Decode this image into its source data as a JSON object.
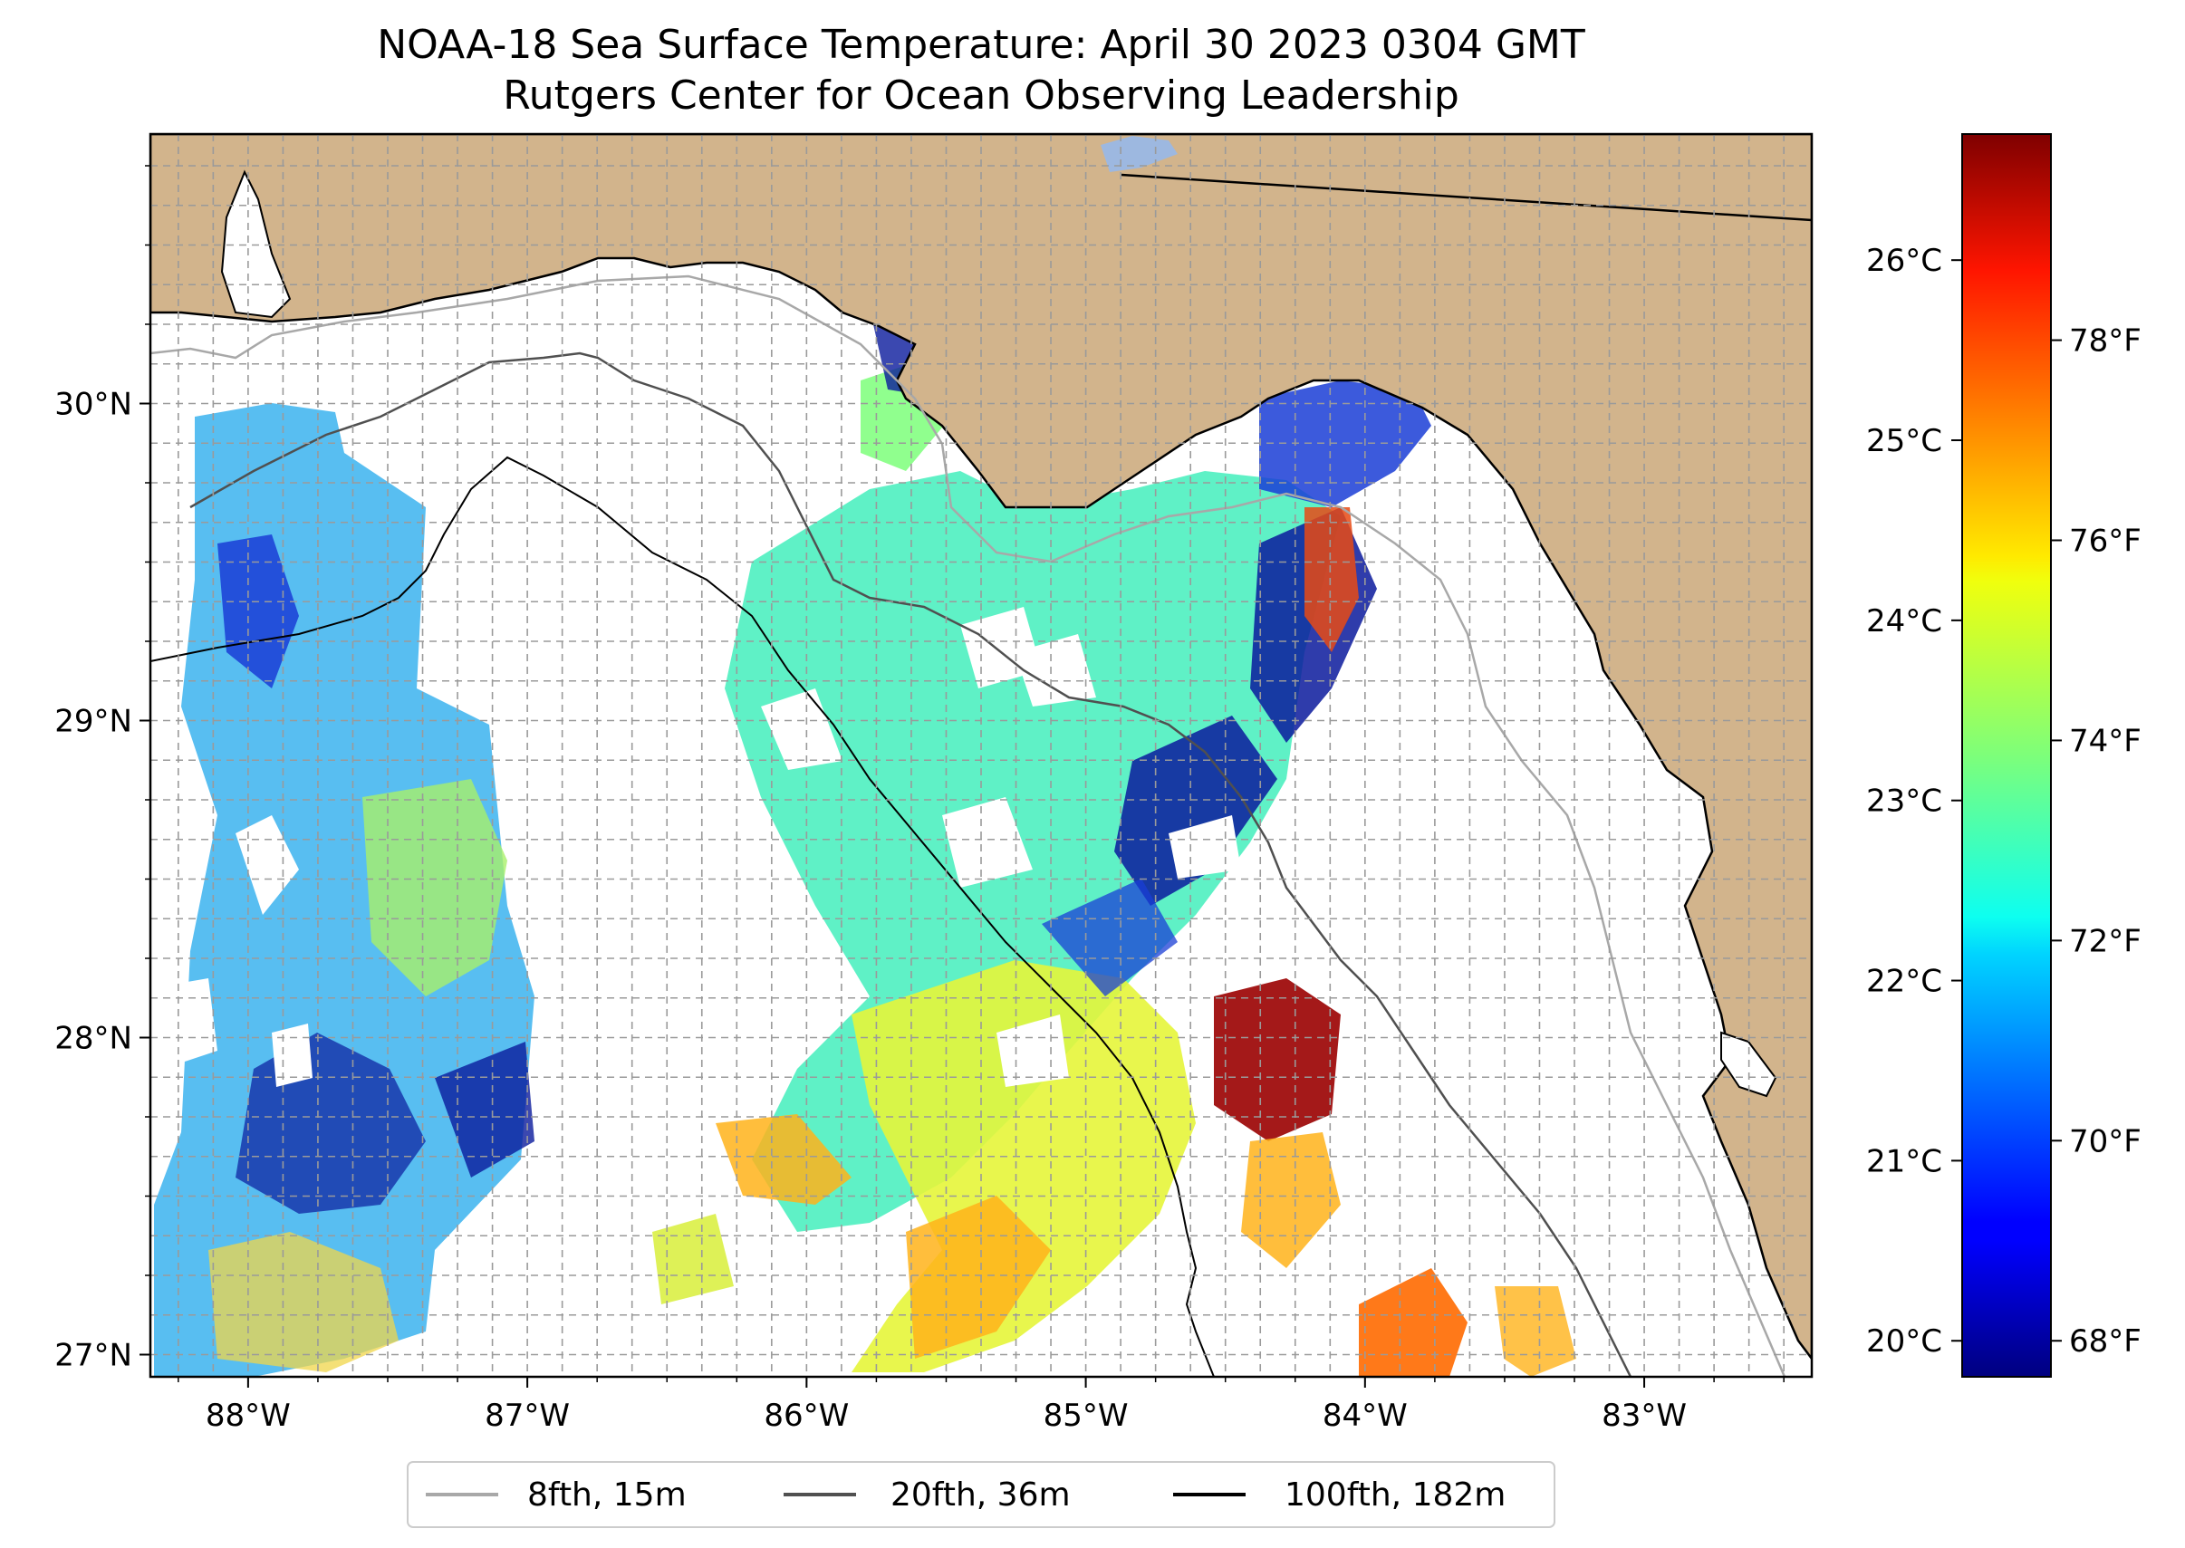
{
  "title": {
    "line1": "NOAA-18 Sea Surface Temperature: April 30 2023 0304 GMT",
    "line2": "Rutgers Center for Ocean Observing Leadership"
  },
  "colors": {
    "land": "#d2b48c",
    "ocean_nodata": "#ffffff",
    "coastline": "#000000",
    "lake": "#9db8e0",
    "grid": "#9a9a9a",
    "iso_8fth": "#a8a8a8",
    "iso_20fth": "#505050",
    "iso_100fth": "#000000"
  },
  "map": {
    "lon_range": [
      -88.35,
      -82.4
    ],
    "lat_range": [
      26.93,
      30.85
    ],
    "lon_ticks": [
      {
        "value": -88,
        "label": "88°W"
      },
      {
        "value": -87,
        "label": "87°W"
      },
      {
        "value": -86,
        "label": "86°W"
      },
      {
        "value": -85,
        "label": "85°W"
      },
      {
        "value": -84,
        "label": "84°W"
      },
      {
        "value": -83,
        "label": "83°W"
      }
    ],
    "lat_ticks": [
      {
        "value": 30,
        "label": "30°N"
      },
      {
        "value": 29,
        "label": "29°N"
      },
      {
        "value": 28,
        "label": "28°N"
      },
      {
        "value": 27,
        "label": "27°N"
      }
    ]
  },
  "colorbar": {
    "colormap": "jet",
    "range_c": [
      19.8,
      26.7
    ],
    "celsius_ticks": [
      {
        "value": 20,
        "label": "20°C"
      },
      {
        "value": 21,
        "label": "21°C"
      },
      {
        "value": 22,
        "label": "22°C"
      },
      {
        "value": 23,
        "label": "23°C"
      },
      {
        "value": 24,
        "label": "24°C"
      },
      {
        "value": 25,
        "label": "25°C"
      },
      {
        "value": 26,
        "label": "26°C"
      }
    ],
    "fahrenheit_ticks": [
      {
        "value": 68,
        "label": "68°F"
      },
      {
        "value": 70,
        "label": "70°F"
      },
      {
        "value": 72,
        "label": "72°F"
      },
      {
        "value": 74,
        "label": "74°F"
      },
      {
        "value": 76,
        "label": "76°F"
      },
      {
        "value": 78,
        "label": "78°F"
      }
    ]
  },
  "legend": {
    "items": [
      {
        "label": "8fth, 15m",
        "color": "#a8a8a8"
      },
      {
        "label": "20fth, 36m",
        "color": "#505050"
      },
      {
        "label": "100fth, 182m",
        "color": "#000000"
      }
    ]
  }
}
